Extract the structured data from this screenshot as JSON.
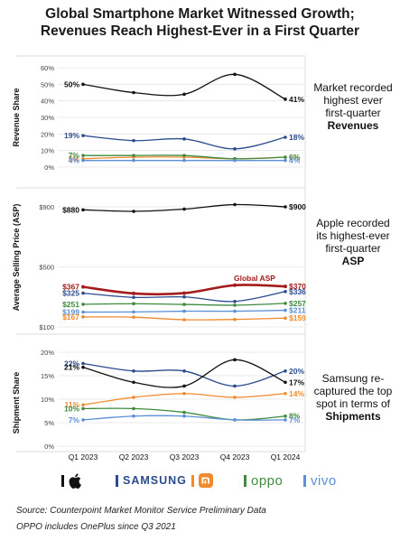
{
  "title_line1": "Global Smartphone Market Witnessed Growth;",
  "title_line2": "Revenues Reach Highest-Ever in a First Quarter",
  "side_notes": {
    "revenue": {
      "text": "Market recorded highest ever first-quarter",
      "bold": "Revenues"
    },
    "asp": {
      "text": "Apple recorded its highest-ever first-quarter",
      "bold": "ASP"
    },
    "shipment": {
      "text": "Samsung re-captured the top spot in terms of",
      "bold": "Shipments"
    }
  },
  "legend": [
    {
      "name": "Apple",
      "icon": "apple-logo-icon",
      "color": "#111111"
    },
    {
      "name": "SAMSUNG",
      "color": "#2a4b8d"
    },
    {
      "name": "mi",
      "icon": "xiaomi-logo-icon",
      "color": "#f08a2c"
    },
    {
      "name": "oppo",
      "color": "#3f8a3f"
    },
    {
      "name": "vivo",
      "color": "#5b8fd6"
    }
  ],
  "footer": {
    "source": "Source: Counterpoint Market Monitor Service Preliminary Data",
    "note": "OPPO includes OnePlus since Q3 2021"
  },
  "chart_data": [
    {
      "type": "line",
      "ylabel": "Revenue Share",
      "ylim": [
        0,
        60
      ],
      "yticks": [
        "0%",
        "10%",
        "20%",
        "30%",
        "40%",
        "50%",
        "60%"
      ],
      "categories": [
        "Q1 2023",
        "Q2 2023",
        "Q3 2023",
        "Q4 2023",
        "Q1 2024"
      ],
      "series": [
        {
          "color": "#111111",
          "values": [
            50,
            45,
            44,
            56,
            41
          ],
          "start_label": "50%",
          "end_label": "41%"
        },
        {
          "color": "#2a4b8d",
          "values": [
            19,
            16,
            17,
            11,
            18
          ],
          "start_label": "19%",
          "end_label": "18%"
        },
        {
          "color": "#f08a2c",
          "values": [
            5,
            6,
            6,
            5,
            6
          ],
          "start_label": "5%",
          "end_label": "6%"
        },
        {
          "color": "#3f8a3f",
          "values": [
            7,
            7,
            7,
            5,
            6
          ],
          "start_label": "7%",
          "end_label": "6%"
        },
        {
          "color": "#5b8fd6",
          "values": [
            4,
            4,
            4,
            4,
            4
          ],
          "start_label": "4%",
          "end_label": "4%"
        }
      ]
    },
    {
      "type": "line",
      "ylabel": "Average Selling Price (ASP)",
      "ylim": [
        100,
        900
      ],
      "yticks": [
        "$100",
        "$500",
        "$900"
      ],
      "categories": [
        "Q1 2023",
        "Q2 2023",
        "Q3 2023",
        "Q4 2023",
        "Q1 2024"
      ],
      "series": [
        {
          "color": "#111111",
          "values": [
            880,
            870,
            885,
            915,
            900
          ],
          "start_label": "$880",
          "end_label": "$900"
        },
        {
          "name": "Global ASP",
          "color": "#a51b1b",
          "values": [
            367,
            323,
            325,
            378,
            370
          ],
          "start_label": "$367",
          "end_label": "$370"
        },
        {
          "color": "#2a4b8d",
          "values": [
            325,
            297,
            300,
            270,
            336
          ],
          "start_label": "$325",
          "end_label": "$336"
        },
        {
          "color": "#3f8a3f",
          "values": [
            251,
            255,
            250,
            245,
            257
          ],
          "start_label": "$251",
          "end_label": "$257"
        },
        {
          "color": "#5b8fd6",
          "values": [
            199,
            200,
            205,
            205,
            211
          ],
          "start_label": "$199",
          "end_label": "$211"
        },
        {
          "color": "#f08a2c",
          "values": [
            167,
            165,
            148,
            150,
            159
          ],
          "start_label": "$167",
          "end_label": "$159"
        }
      ]
    },
    {
      "type": "line",
      "ylabel": "Shipment Share",
      "ylim": [
        0,
        25
      ],
      "yticks": [
        "0%",
        "5%",
        "10%",
        "15%",
        "20%"
      ],
      "categories": [
        "Q1 2023",
        "Q2 2023",
        "Q3 2023",
        "Q4 2023",
        "Q1 2024"
      ],
      "series": [
        {
          "color": "#2a4b8d",
          "values": [
            22,
            20,
            20,
            16,
            20
          ],
          "start_label": "22%",
          "end_label": "20%"
        },
        {
          "color": "#111111",
          "values": [
            21,
            17,
            16,
            23,
            17
          ],
          "start_label": "21%",
          "end_label": "17%"
        },
        {
          "color": "#f08a2c",
          "values": [
            11,
            13,
            14,
            13,
            14
          ],
          "start_label": "11%",
          "end_label": "14%"
        },
        {
          "color": "#3f8a3f",
          "values": [
            10,
            10,
            9,
            7,
            8
          ],
          "start_label": "10%",
          "end_label": "8%"
        },
        {
          "color": "#5b8fd6",
          "values": [
            7,
            8,
            8,
            7,
            7
          ],
          "start_label": "7%",
          "end_label": "7%"
        }
      ]
    }
  ]
}
